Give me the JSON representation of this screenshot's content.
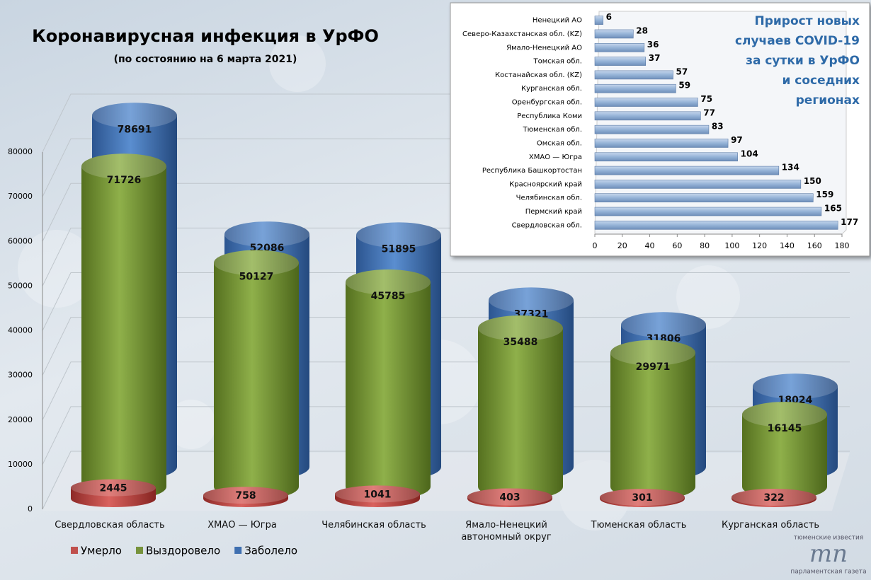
{
  "chart_data": [
    {
      "type": "cylinder",
      "title": "Коронавирусная инфекция в УрФО",
      "subtitle": "(по состоянию на 6 марта 2021)",
      "categories": [
        "Свердловская область",
        "ХМАО — Югра",
        "Челябинская область",
        "Ямало-Ненецкий автономный округ",
        "Тюменская область",
        "Курганская область"
      ],
      "series": [
        {
          "name": "Умерло",
          "color": "#c0504d",
          "values": [
            2445,
            758,
            1041,
            403,
            301,
            322
          ]
        },
        {
          "name": "Выздоровело",
          "color": "#77933c",
          "values": [
            71726,
            50127,
            45785,
            35488,
            29971,
            16145
          ]
        },
        {
          "name": "Заболело",
          "color": "#3f6fb0",
          "values": [
            78691,
            52086,
            51895,
            37321,
            31806,
            18024
          ]
        }
      ],
      "ylim": [
        0,
        80000
      ],
      "yticks": [
        0,
        10000,
        20000,
        30000,
        40000,
        50000,
        60000,
        70000,
        80000
      ],
      "grid": true,
      "legend": "bottom"
    },
    {
      "type": "hbar",
      "title": [
        "Прирост новых",
        "случаев COVID-19",
        "за сутки в УрФО",
        "и соседних",
        "регионах"
      ],
      "categories": [
        "Ненецкий АО",
        "Северо-Казахстанская обл. (KZ)",
        "Ямало-Ненецкий АО",
        "Томская обл.",
        "Костанайская обл. (KZ)",
        "Курганская обл.",
        "Оренбургская обл.",
        "Республика Коми",
        "Тюменская обл.",
        "Омская обл.",
        "ХМАО — Югра",
        "Республика Башкортостан",
        "Красноярский край",
        "Челябинская обл.",
        "Пермский край",
        "Свердловская обл."
      ],
      "values": [
        6,
        28,
        36,
        37,
        57,
        59,
        75,
        77,
        83,
        97,
        104,
        134,
        150,
        159,
        165,
        177
      ],
      "color": "#95b3d7",
      "xlim": [
        0,
        180
      ],
      "xticks": [
        0,
        20,
        40,
        60,
        80,
        100,
        120,
        140,
        160,
        180
      ],
      "grid": false
    }
  ],
  "logo": {
    "top": "тюменские известия",
    "mark": "тп",
    "bottom": "парламентская газета"
  }
}
